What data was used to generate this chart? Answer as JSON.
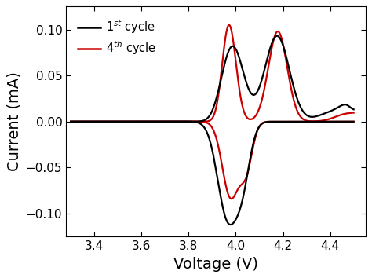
{
  "title": "",
  "xlabel": "Voltage (V)",
  "ylabel": "Current (mA)",
  "xlim": [
    3.28,
    4.55
  ],
  "ylim": [
    -0.125,
    0.125
  ],
  "xticks": [
    3.4,
    3.6,
    3.8,
    4.0,
    4.2,
    4.4
  ],
  "yticks": [
    -0.1,
    -0.05,
    0.0,
    0.05,
    0.1
  ],
  "line1_color": "#000000",
  "line2_color": "#cc0000",
  "legend_labels": [
    "1$^{st}$ cycle",
    "4$^{th}$ cycle"
  ],
  "xlabel_fontsize": 14,
  "ylabel_fontsize": 14,
  "tick_fontsize": 11,
  "lw": 1.6
}
